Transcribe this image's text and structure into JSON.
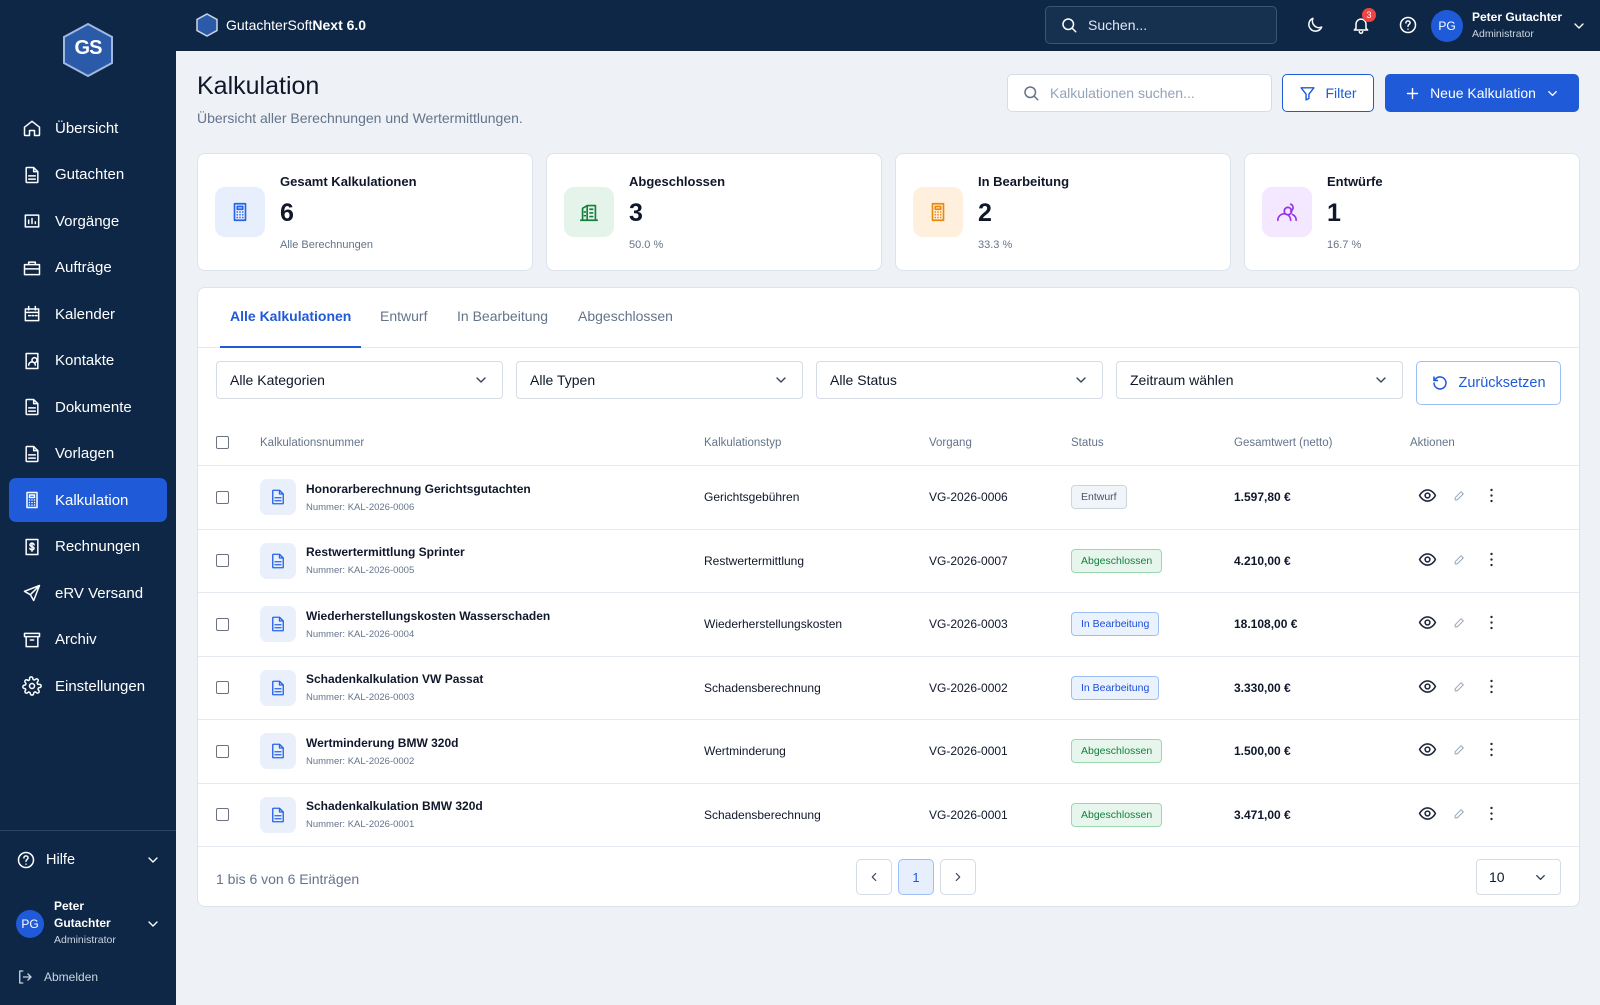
{
  "logo": "GS",
  "topbar": {
    "app_name": "GutachterSoft",
    "app_name_bold": "Next 6.0",
    "search": "Suchen...",
    "notifications": 3
  },
  "user": {
    "initials": "PG",
    "name": "Peter Gutachter",
    "role": "Administrator"
  },
  "sidebar": {
    "nav": [
      {
        "label": "Übersicht",
        "active": false
      },
      {
        "label": "Gutachten",
        "active": false
      },
      {
        "label": "Vorgänge",
        "active": false
      },
      {
        "label": "Aufträge",
        "active": false
      },
      {
        "label": "Kalender",
        "active": false
      },
      {
        "label": "Kontakte",
        "active": false
      },
      {
        "label": "Dokumente",
        "active": false
      },
      {
        "label": "Vorlagen",
        "active": false
      },
      {
        "label": "Kalkulation",
        "active": true
      },
      {
        "label": "Rechnungen",
        "active": false
      },
      {
        "label": "eRV Versand",
        "active": false
      },
      {
        "label": "Archiv",
        "active": false
      },
      {
        "label": "Einstellungen",
        "active": false
      }
    ],
    "help": "Hilfe",
    "logout": "Abmelden"
  },
  "page": {
    "title": "Kalkulation",
    "subtitle": "Übersicht aller Berechnungen und Wertermittlungen.",
    "search_placeholder": "Kalkulationen suchen...",
    "filter": "Filter",
    "new": "Neue Kalkulation"
  },
  "stats": [
    {
      "label": "Gesamt Kalkulationen",
      "value": 6,
      "note": "Alle Berechnungen"
    },
    {
      "label": "Abgeschlossen",
      "value": 3,
      "note": "50.0 %"
    },
    {
      "label": "In Bearbeitung",
      "value": 2,
      "note": "33.3 %"
    },
    {
      "label": "Entwürfe",
      "value": 1,
      "note": "16.7 %"
    }
  ],
  "tabs": {
    "items": [
      "Alle Kalkulationen",
      "Entwurf",
      "In Bearbeitung",
      "Abgeschlossen"
    ],
    "active": 0
  },
  "filters": {
    "items": [
      "Alle Kategorien",
      "Alle Typen",
      "Alle Status",
      "Zeitraum wählen"
    ],
    "reset": "Zurücksetzen"
  },
  "table": {
    "columns": [
      "Kalkulationsnummer",
      "Kalkulationstyp",
      "Vorgang",
      "Status",
      "Gesamtwert (netto)",
      "Aktionen"
    ],
    "rows": [
      {
        "title": "Honorarberechnung Gerichtsgutachten",
        "number": "Nummer: KAL-2026-0006",
        "type": "Gerichtsgebühren",
        "case": "VG-2026-0006",
        "status": "Entwurf",
        "total": "1.597,80 €"
      },
      {
        "title": "Restwertermittlung Sprinter",
        "number": "Nummer: KAL-2026-0005",
        "type": "Restwertermittlung",
        "case": "VG-2026-0007",
        "status": "Abgeschlossen",
        "total": "4.210,00 €"
      },
      {
        "title": "Wiederherstellungskosten Wasserschaden",
        "number": "Nummer: KAL-2026-0004",
        "type": "Wiederherstellungskosten",
        "case": "VG-2026-0003",
        "status": "In Bearbeitung",
        "total": "18.108,00 €"
      },
      {
        "title": "Schadenkalkulation VW Passat",
        "number": "Nummer: KAL-2026-0003",
        "type": "Schadensberechnung",
        "case": "VG-2026-0002",
        "status": "In Bearbeitung",
        "total": "3.330,00 €"
      },
      {
        "title": "Wertminderung BMW 320d",
        "number": "Nummer: KAL-2026-0002",
        "type": "Wertminderung",
        "case": "VG-2026-0001",
        "status": "Abgeschlossen",
        "total": "1.500,00 €"
      },
      {
        "title": "Schadenkalkulation BMW 320d",
        "number": "Nummer: KAL-2026-0001",
        "type": "Schadensberechnung",
        "case": "VG-2026-0001",
        "status": "Abgeschlossen",
        "total": "3.471,00 €"
      }
    ]
  },
  "pagination": {
    "info": "1 bis 6 von 6 Einträgen",
    "page": 1,
    "per_page": 10
  }
}
